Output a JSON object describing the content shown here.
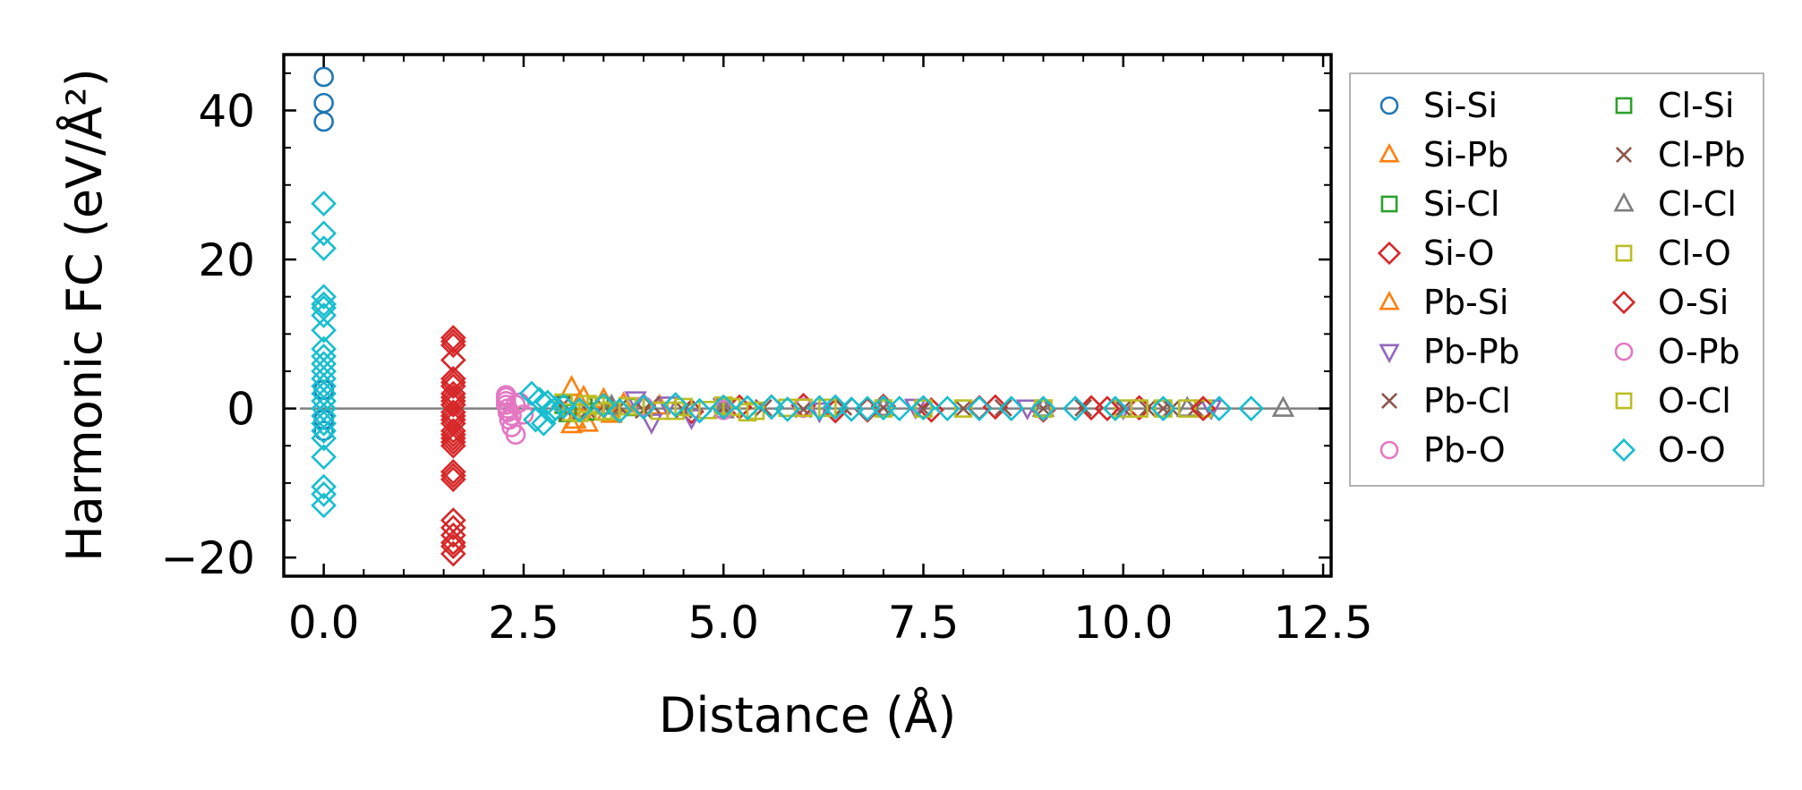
{
  "chart_data": {
    "type": "scatter",
    "title": "",
    "xlabel": "Distance (Å)",
    "ylabel": "Harmonic FC (eV/Å²)",
    "xlim": [
      -0.5,
      12.6
    ],
    "ylim": [
      -22.5,
      47.5
    ],
    "xticks": [
      0.0,
      2.5,
      5.0,
      7.5,
      10.0,
      12.5
    ],
    "xtick_labels": [
      "0.0",
      "2.5",
      "5.0",
      "7.5",
      "10.0",
      "12.5"
    ],
    "yticks": [
      -20,
      0,
      20,
      40
    ],
    "ytick_labels": [
      "−20",
      "0",
      "20",
      "40"
    ],
    "reference_line_y": 0,
    "grid": false,
    "legend_position": "outside-right",
    "series": [
      {
        "name": "Si-Si",
        "color": "#1f77b4",
        "marker": "circle",
        "x": [
          0,
          0,
          0,
          0,
          0,
          0
        ],
        "y": [
          44.5,
          41.0,
          38.5,
          2.5,
          -1.5,
          -3.0
        ]
      },
      {
        "name": "Si-Pb",
        "color": "#ff7f0e",
        "marker": "triangle-up",
        "x": [
          3.1,
          3.15,
          3.2,
          3.3,
          3.5,
          3.6,
          3.75,
          4.2
        ],
        "y": [
          2.8,
          -1.6,
          0.8,
          -2.0,
          1.2,
          -0.8,
          0.6,
          0.3
        ]
      },
      {
        "name": "Si-Cl",
        "color": "#2ca02c",
        "marker": "square",
        "x": [
          3.0,
          3.4,
          3.9
        ],
        "y": [
          0.5,
          -0.4,
          0.2
        ]
      },
      {
        "name": "Si-O",
        "color": "#d62728",
        "marker": "diamond",
        "x": [
          1.62,
          1.62,
          1.62,
          1.62,
          1.62,
          1.62,
          1.62,
          1.62,
          1.62,
          1.62,
          1.62,
          1.62,
          1.62,
          1.62,
          1.62,
          1.62,
          1.62,
          1.62,
          1.62,
          1.62,
          1.62,
          4.0,
          4.6,
          5.2,
          6.0,
          6.4,
          7.0,
          7.6,
          8.4,
          9.0,
          9.6,
          10.2
        ],
        "y": [
          9.5,
          8.5,
          6.5,
          4.0,
          3.0,
          1.5,
          1.0,
          0.5,
          -0.5,
          -1.0,
          -2.0,
          -3.5,
          -4.0,
          -5.0,
          -8.5,
          -9.5,
          -15.0,
          -16.0,
          -17.0,
          -18.0,
          -19.5,
          0.3,
          -0.4,
          0.2,
          0.4,
          -0.3,
          0.3,
          -0.2,
          0.2,
          -0.2,
          0.1,
          0.1
        ]
      },
      {
        "name": "Pb-Si",
        "color": "#ff7f0e",
        "marker": "triangle-up",
        "x": [
          3.1,
          3.25,
          3.55
        ],
        "y": [
          -2.2,
          1.5,
          -0.5
        ]
      },
      {
        "name": "Pb-Pb",
        "color": "#9467bd",
        "marker": "triangle-down",
        "x": [
          3.9,
          4.1,
          4.3,
          4.6,
          5.0,
          6.2,
          7.4,
          8.8,
          10.0,
          11.1
        ],
        "y": [
          1.2,
          -1.8,
          0.5,
          -1.2,
          0.3,
          -0.3,
          0.2,
          0.1,
          0.1,
          0.1
        ]
      },
      {
        "name": "Pb-Cl",
        "color": "#8c564b",
        "marker": "x",
        "x": [
          3.0,
          3.3,
          3.7,
          4.1,
          4.5,
          5.5,
          6.5,
          7.5,
          8.5,
          9.5,
          10.3,
          10.6,
          10.9
        ],
        "y": [
          0.6,
          -0.3,
          0.2,
          0.5,
          -0.2,
          0.1,
          0.2,
          -0.1,
          0.1,
          0.1,
          0.0,
          0.0,
          0.0
        ]
      },
      {
        "name": "Pb-O",
        "color": "#e377c2",
        "marker": "circle",
        "x": [
          2.28,
          2.28,
          2.28,
          2.3,
          2.32,
          2.35,
          2.4,
          2.45,
          2.5
        ],
        "y": [
          1.8,
          1.0,
          0.5,
          -0.5,
          -1.5,
          -2.5,
          -3.5,
          0.8,
          -0.8
        ]
      },
      {
        "name": "Cl-Si",
        "color": "#2ca02c",
        "marker": "square",
        "x": [
          3.05,
          3.45
        ],
        "y": [
          -0.6,
          0.4
        ]
      },
      {
        "name": "Cl-Pb",
        "color": "#8c564b",
        "marker": "x",
        "x": [
          3.05,
          3.5,
          4.0,
          5.0,
          6.0,
          7.0,
          8.0,
          9.0,
          10.0,
          10.5
        ],
        "y": [
          -0.5,
          0.3,
          -0.2,
          0.1,
          -0.1,
          0.1,
          0.0,
          0.0,
          0.0,
          0.0
        ]
      },
      {
        "name": "Cl-Cl",
        "color": "#7f7f7f",
        "marker": "triangle-up",
        "x": [
          3.6,
          5.0,
          7.0,
          9.0,
          10.8,
          12.0
        ],
        "y": [
          0.3,
          -0.2,
          0.1,
          0.0,
          0.0,
          0.0
        ]
      },
      {
        "name": "Cl-O",
        "color": "#bcbd22",
        "marker": "square",
        "x": [
          3.0,
          3.2,
          3.4,
          3.6,
          3.9,
          4.2,
          4.5,
          4.8,
          5.1,
          5.4,
          5.8,
          6.3,
          7.0,
          8.0,
          9.0,
          10.0,
          10.5,
          10.8,
          11.0
        ],
        "y": [
          0.8,
          -0.6,
          0.4,
          -0.3,
          0.3,
          -0.3,
          0.2,
          -0.2,
          0.2,
          -0.3,
          0.1,
          0.1,
          0.0,
          0.0,
          0.0,
          0.0,
          0.0,
          0.0,
          0.0
        ]
      },
      {
        "name": "O-Si",
        "color": "#d62728",
        "marker": "diamond",
        "x": [
          1.62,
          1.62,
          1.62,
          1.62,
          1.62,
          1.62,
          1.62,
          1.62,
          5.6,
          6.8,
          8.2,
          9.8,
          11.0
        ],
        "y": [
          9.0,
          3.5,
          2.0,
          -1.5,
          -3.0,
          -4.5,
          -9.0,
          -18.5,
          0.2,
          -0.2,
          0.1,
          0.0,
          0.0
        ]
      },
      {
        "name": "O-Pb",
        "color": "#e377c2",
        "marker": "circle",
        "x": [
          2.28,
          2.3,
          2.35,
          2.4,
          4.0,
          5.0,
          6.0
        ],
        "y": [
          1.5,
          0.0,
          -1.0,
          0.5,
          0.3,
          -0.2,
          0.1
        ]
      },
      {
        "name": "O-Cl",
        "color": "#bcbd22",
        "marker": "square",
        "x": [
          3.1,
          3.3,
          3.5,
          3.8,
          4.4,
          5.0,
          5.3,
          6.0,
          7.5,
          9.0,
          10.2
        ],
        "y": [
          -0.5,
          0.6,
          -0.4,
          0.3,
          -0.3,
          0.4,
          -0.5,
          0.1,
          0.0,
          0.0,
          0.0
        ]
      },
      {
        "name": "O-O",
        "color": "#17becf",
        "marker": "diamond",
        "x": [
          0,
          0,
          0,
          0,
          0,
          0,
          0,
          0,
          0,
          0,
          0,
          0,
          0,
          0,
          0,
          0,
          0,
          0,
          0,
          0,
          0,
          0,
          0,
          0,
          0,
          2.6,
          2.65,
          2.7,
          2.75,
          2.8,
          2.85,
          2.9,
          3.0,
          3.2,
          3.5,
          3.7,
          4.0,
          4.4,
          4.7,
          5.0,
          5.3,
          5.6,
          5.8,
          6.2,
          6.4,
          6.6,
          6.8,
          7.0,
          7.2,
          7.5,
          7.8,
          8.2,
          8.6,
          9.0,
          9.4,
          9.9,
          10.5,
          11.2,
          11.6
        ],
        "y": [
          27.5,
          23.5,
          21.5,
          15.0,
          14.0,
          13.5,
          12.5,
          10.5,
          8.0,
          7.0,
          6.0,
          5.0,
          4.0,
          3.0,
          2.0,
          1.0,
          0.0,
          -1.0,
          -2.0,
          -3.0,
          -4.0,
          -6.5,
          -10.5,
          -11.5,
          -13.0,
          2.0,
          -1.5,
          1.2,
          -2.0,
          0.8,
          -0.5,
          0.0,
          0.3,
          -0.2,
          0.4,
          -0.3,
          0.2,
          0.5,
          -0.3,
          0.2,
          0.1,
          0.2,
          -0.1,
          0.1,
          0.2,
          -0.1,
          0.0,
          0.1,
          0.0,
          0.1,
          0.0,
          0.0,
          0.0,
          0.0,
          0.0,
          0.0,
          0.0,
          0.0,
          0.0
        ]
      }
    ]
  }
}
